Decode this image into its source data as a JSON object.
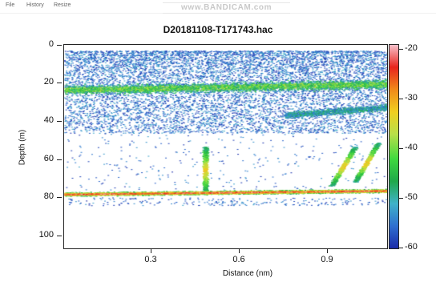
{
  "menu": {
    "items": [
      "File",
      "History",
      "Resize"
    ]
  },
  "watermark": "www.BANDICAM.com",
  "chart_data": {
    "type": "heatmap",
    "title": "D20181108-T171743.hac",
    "xlabel": "Distance (nm)",
    "ylabel": "Depth (m)",
    "x_ticks": [
      0.3,
      0.6,
      0.9
    ],
    "y_ticks": [
      0,
      20,
      40,
      60,
      80,
      100
    ],
    "xlim": [
      0.0,
      1.1
    ],
    "ylim": [
      0,
      104
    ],
    "y_inverted": true,
    "colorbar": {
      "ticks": [
        -20,
        -30,
        -40,
        -50,
        -60
      ],
      "range": [
        -60,
        -20
      ],
      "colors": [
        "#1a2aa8",
        "#2f6fd0",
        "#3fb2c9",
        "#1fa84a",
        "#3fd93f",
        "#b8e04a",
        "#f0d020",
        "#f08a1a",
        "#e8241c",
        "#f7c2cc"
      ]
    },
    "features": [
      {
        "name": "upper scatter layer",
        "depth_range": [
          5,
          45
        ],
        "sv_db": [
          -60,
          -52
        ]
      },
      {
        "name": "sound scattering band",
        "depth_center": 22,
        "sv_db": [
          -52,
          -40
        ]
      },
      {
        "name": "secondary band",
        "depth_center": 33,
        "x_range": [
          0.75,
          1.1
        ],
        "sv_db": [
          -55,
          -45
        ]
      },
      {
        "name": "bottom echo",
        "depth_center": 76,
        "sv_db": [
          -45,
          -22
        ]
      },
      {
        "name": "fish aggregation",
        "x_center": 0.48,
        "depth_range": [
          52,
          76
        ],
        "sv_db": [
          -50,
          -35
        ]
      },
      {
        "name": "fish aggregation",
        "x_center": 0.99,
        "depth_range": [
          52,
          72
        ],
        "sv_db": [
          -50,
          -35
        ]
      },
      {
        "name": "fish aggregation",
        "x_center": 1.07,
        "depth_range": [
          50,
          70
        ],
        "sv_db": [
          -50,
          -35
        ]
      }
    ]
  }
}
